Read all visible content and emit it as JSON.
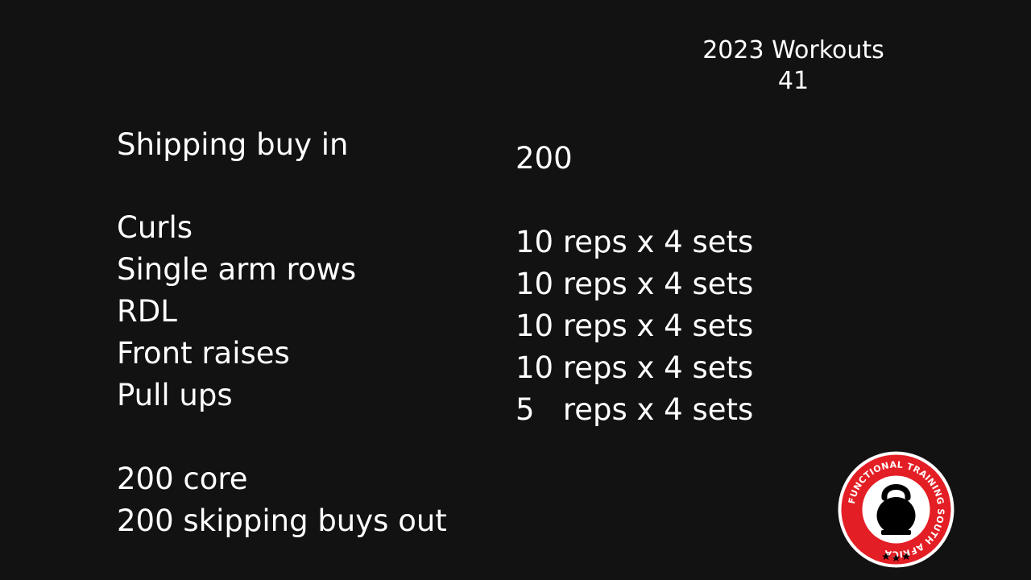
{
  "header": {
    "title": "2023 Workouts",
    "number": "41"
  },
  "buy_in": {
    "label": "Shipping buy in",
    "value": "200"
  },
  "exercises": [
    {
      "name": "Curls",
      "prescription": "10 reps x 4 sets"
    },
    {
      "name": "Single arm rows",
      "prescription": "10 reps x 4 sets"
    },
    {
      "name": "RDL",
      "prescription": "10 reps x 4 sets"
    },
    {
      "name": "Front raises",
      "prescription": "10 reps x 4 sets"
    },
    {
      "name": "Pull ups",
      "prescription": "5   reps x 4 sets"
    }
  ],
  "finisher": {
    "core": "200 core",
    "buy_out": "200 skipping buys out"
  },
  "logo": {
    "text": "FUNCTIONAL TRAINING SOUTH AFRICA",
    "ring_color": "#e31e24",
    "inner_color": "#ffffff",
    "icon": "kettlebell-icon"
  }
}
